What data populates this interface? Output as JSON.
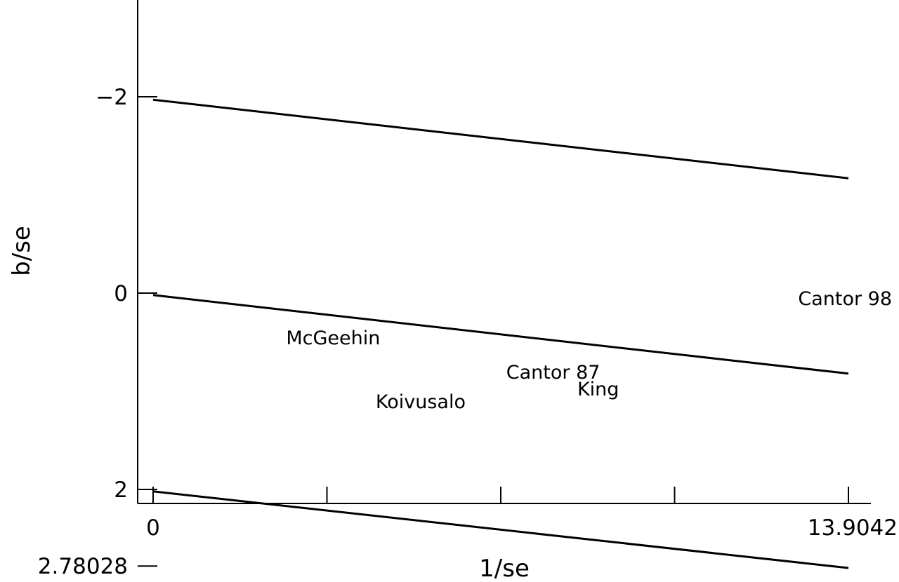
{
  "chart_data": {
    "type": "scatter",
    "title": "",
    "xlabel": "1/se",
    "ylabel": "b/se",
    "xlim": [
      0,
      13.9042
    ],
    "ylim": [
      -2.15,
      3.0
    ],
    "x_ticks": [
      0,
      3.47605,
      6.9521,
      10.42815,
      13.9042
    ],
    "x_tick_labels": [
      "0",
      "",
      "",
      "",
      "13.9042"
    ],
    "y_ticks": [
      -2,
      0,
      2,
      2.78028
    ],
    "y_tick_labels": [
      "−2",
      "0",
      "2",
      "2.78028"
    ],
    "grid": false,
    "legend": "none",
    "points": [
      {
        "label": "Koivusalo",
        "x": 5.35,
        "y": 1.1
      },
      {
        "label": "King",
        "x": 8.9,
        "y": 0.97
      },
      {
        "label": "Cantor 87",
        "x": 8.0,
        "y": 0.8
      },
      {
        "label": "McGeehin",
        "x": 3.6,
        "y": 0.45
      },
      {
        "label": "Cantor 98",
        "x": 13.9,
        "y": 0.05
      }
    ],
    "lines": [
      {
        "role": "upper",
        "x": [
          0,
          13.9042
        ],
        "y": [
          2.02,
          2.8
        ]
      },
      {
        "role": "fit",
        "x": [
          0,
          13.9042
        ],
        "y": [
          0.02,
          0.82
        ]
      },
      {
        "role": "lower",
        "x": [
          0,
          13.9042
        ],
        "y": [
          -1.97,
          -1.17
        ]
      }
    ],
    "colors": {
      "ink": "#000000",
      "background": "#ffffff"
    }
  }
}
